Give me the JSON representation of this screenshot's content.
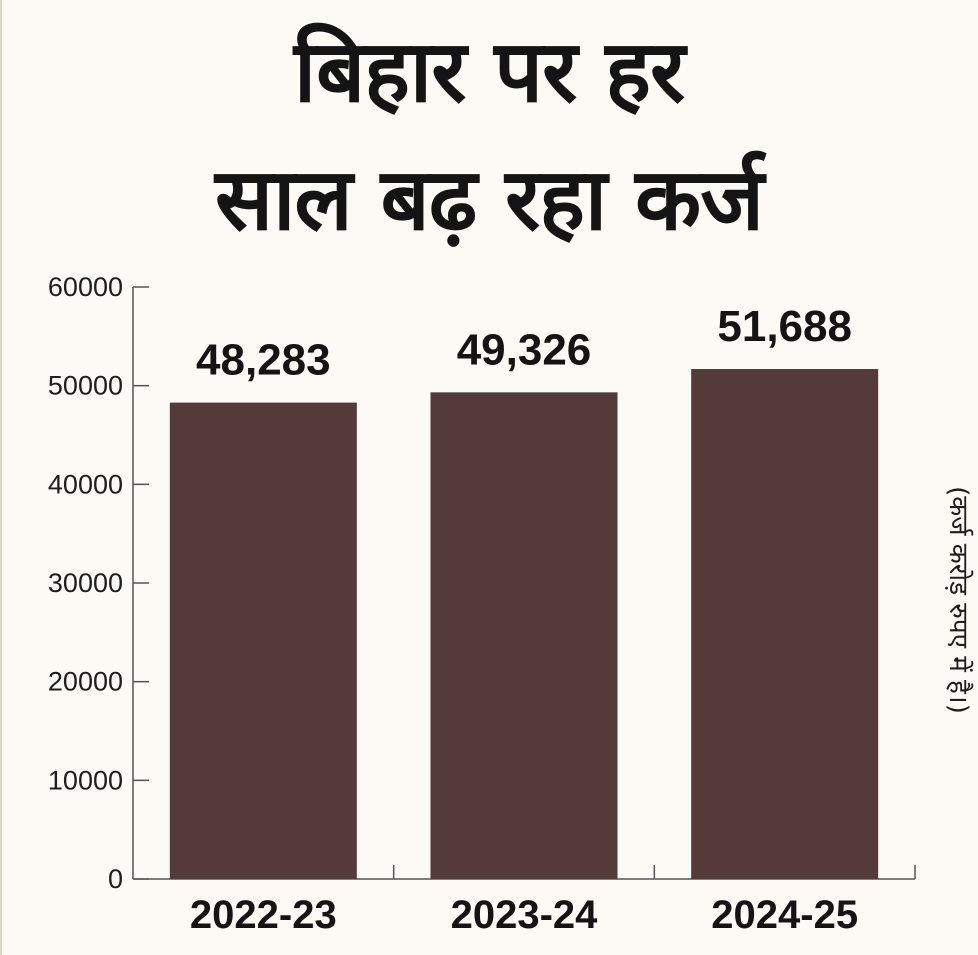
{
  "header": {
    "title_line1": "बिहार पर हर",
    "title_line2": "साल बढ़ रहा कर्ज"
  },
  "colors": {
    "bar": "#553a3a",
    "axis": "#555555",
    "background": "#fbfaf5"
  },
  "chart_data": {
    "type": "bar",
    "categories": [
      "2022-23",
      "2023-24",
      "2024-25"
    ],
    "values": [
      48283,
      49326,
      51688
    ],
    "data_labels": [
      "48,283",
      "49,326",
      "51,688"
    ],
    "yticks": [
      "0",
      "10000",
      "20000",
      "30000",
      "40000",
      "50000",
      "60000"
    ],
    "ylim": [
      0,
      60000
    ],
    "unit_note": "(कर्ज करोड़ रुपए में है।)",
    "grid": false,
    "legend": "none"
  }
}
